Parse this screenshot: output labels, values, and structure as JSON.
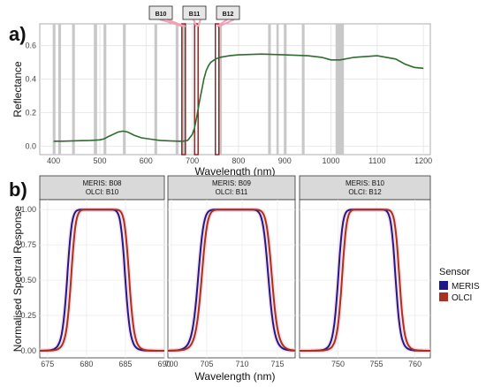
{
  "labels": {
    "panel_a": "a)",
    "panel_b": "b)"
  },
  "chart_data": [
    {
      "type": "line",
      "panel": "a",
      "xlabel": "Wavelength (nm)",
      "ylabel": "Reflectance",
      "xlim": [
        370,
        1215
      ],
      "ylim": [
        -0.05,
        0.73
      ],
      "xticks": [
        400,
        500,
        600,
        700,
        800,
        900,
        1000,
        1100,
        1200
      ],
      "yticks": [
        0.0,
        0.2,
        0.4,
        0.6
      ],
      "ytick_labels": [
        "0.0",
        "0.2",
        "0.4",
        "0.6"
      ],
      "grid": true,
      "line_color": "#2e6b2e",
      "series": [
        {
          "x": [
            400,
            420,
            450,
            480,
            500,
            510,
            520,
            540,
            550,
            560,
            575,
            590,
            610,
            630,
            650,
            670,
            680,
            690,
            700,
            705,
            710,
            715,
            720,
            725,
            730,
            735,
            740,
            750,
            760,
            780,
            800,
            850,
            900,
            950,
            980,
            1000,
            1020,
            1050,
            1100,
            1140,
            1160,
            1180,
            1200
          ],
          "y": [
            0.03,
            0.03,
            0.033,
            0.035,
            0.038,
            0.045,
            0.06,
            0.085,
            0.09,
            0.085,
            0.065,
            0.05,
            0.042,
            0.035,
            0.032,
            0.03,
            0.03,
            0.035,
            0.07,
            0.11,
            0.18,
            0.26,
            0.33,
            0.4,
            0.45,
            0.48,
            0.5,
            0.52,
            0.53,
            0.54,
            0.545,
            0.55,
            0.545,
            0.54,
            0.53,
            0.515,
            0.515,
            0.53,
            0.54,
            0.52,
            0.49,
            0.47,
            0.465
          ]
        }
      ],
      "grey_bands_nm": [
        [
          398,
          404
        ],
        [
          410,
          416
        ],
        [
          440,
          446
        ],
        [
          487,
          494
        ],
        [
          508,
          514
        ],
        [
          550,
          556
        ],
        [
          618,
          624
        ],
        [
          664,
          670
        ],
        [
          678,
          686
        ],
        [
          758,
          764
        ],
        [
          864,
          870
        ],
        [
          882,
          887
        ],
        [
          898,
          904
        ],
        [
          937,
          943
        ],
        [
          1010,
          1028
        ]
      ],
      "olci_bands": [
        {
          "label": "B10",
          "center": 681.25,
          "color": "#8b1a1a"
        },
        {
          "label": "B11",
          "center": 708.75,
          "color": "#8b1a1a"
        },
        {
          "label": "B12",
          "center": 753.75,
          "color": "#8b1a1a"
        }
      ]
    },
    {
      "type": "line",
      "panel": "b",
      "xlabel": "Wavelength (nm)",
      "ylabel": "Normalised Spectral Response",
      "ylim": [
        -0.05,
        1.07
      ],
      "yticks": [
        0.0,
        0.25,
        0.5,
        0.75,
        1.0
      ],
      "ytick_labels": [
        "0.00",
        "0.25",
        "0.50",
        "0.75",
        "1.00"
      ],
      "legend": {
        "title": "Sensor",
        "position": "right",
        "entries": [
          {
            "name": "MERIS",
            "color": "#1f1a8a"
          },
          {
            "name": "OLCI",
            "color": "#a8321e"
          }
        ]
      },
      "facets": [
        {
          "strip": [
            "MERIS: B08",
            "OLCI: B10"
          ],
          "xlim": [
            674,
            690
          ],
          "xticks": [
            675,
            680,
            685,
            690
          ],
          "series": [
            {
              "name": "MERIS",
              "center": 681.25,
              "width": 7.5
            },
            {
              "name": "OLCI",
              "center": 681.75,
              "width": 7.5
            }
          ]
        },
        {
          "strip": [
            "MERIS: B09",
            "OLCI: B11"
          ],
          "xlim": [
            699.5,
            717.5
          ],
          "xticks": [
            700,
            705,
            710,
            715
          ],
          "series": [
            {
              "name": "MERIS",
              "center": 708.75,
              "width": 10.0
            },
            {
              "name": "OLCI",
              "center": 709.25,
              "width": 10.0
            }
          ]
        },
        {
          "strip": [
            "MERIS: B10",
            "OLCI: B12"
          ],
          "xlim": [
            745,
            762
          ],
          "xticks": [
            750,
            755,
            760
          ],
          "series": [
            {
              "name": "MERIS",
              "center": 753.75,
              "width": 7.5
            },
            {
              "name": "OLCI",
              "center": 754.25,
              "width": 7.5
            }
          ]
        }
      ]
    }
  ]
}
